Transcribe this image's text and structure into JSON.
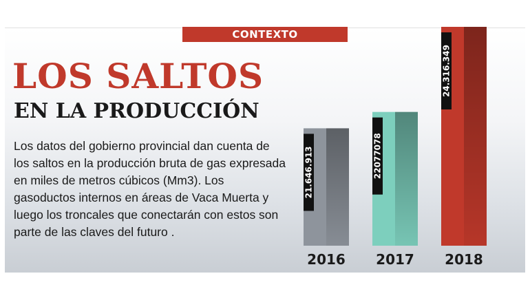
{
  "banner": "CONTEXTO",
  "headline": "LOS SALTOS",
  "subheadline": "EN LA PRODUCCIÓN",
  "body": "Los datos del gobierno provincial dan cuenta de los saltos en la producción bruta de gas expresada en miles de metros cúbicos (Mm3). Los gasoductos internos en áreas de Vaca Muerta y luego los troncales que conectarán con estos son parte de las claves del futuro .",
  "colors": {
    "accent_red": "#c0392b",
    "bar_2016": "#8e949c",
    "bar_2017": "#7dcfbd",
    "bar_2018": "#c0392b"
  },
  "chart_data": {
    "type": "bar",
    "categories": [
      "2016",
      "2017",
      "2018"
    ],
    "values": [
      21646913,
      22077078,
      24316349
    ],
    "value_labels": [
      "21.646.913",
      "22077078",
      "24.316.349"
    ],
    "title": "",
    "xlabel": "",
    "ylabel": "",
    "ylim": [
      0,
      24316349
    ],
    "grid": false,
    "legend": "none"
  }
}
